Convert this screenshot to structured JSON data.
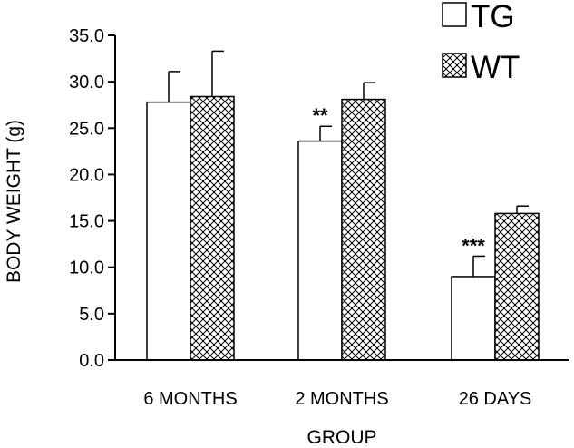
{
  "chart_data": {
    "type": "bar",
    "title": "",
    "xlabel": "GROUP",
    "ylabel": "BODY WEIGHT (g)",
    "ylim": [
      0,
      35
    ],
    "yticks": [
      "0.0",
      "5.0",
      "10.0",
      "15.0",
      "20.0",
      "25.0",
      "30.0",
      "35.0"
    ],
    "ytick_values": [
      0,
      5,
      10,
      15,
      20,
      25,
      30,
      35
    ],
    "categories": [
      "6 MONTHS",
      "2 MONTHS",
      "26 DAYS"
    ],
    "series": [
      {
        "name": "TG",
        "pattern": "solid-white",
        "values": [
          27.8,
          23.6,
          9.0
        ],
        "errors": [
          3.3,
          1.6,
          2.2
        ]
      },
      {
        "name": "WT",
        "pattern": "crosshatch",
        "values": [
          28.4,
          28.1,
          15.8
        ],
        "errors": [
          4.9,
          1.8,
          0.8
        ]
      }
    ],
    "annotations": [
      {
        "category": "2 MONTHS",
        "series": "TG",
        "text": "**"
      },
      {
        "category": "26 DAYS",
        "series": "TG",
        "text": "***"
      }
    ],
    "legend": {
      "placement": "top-right"
    },
    "grid": false
  }
}
